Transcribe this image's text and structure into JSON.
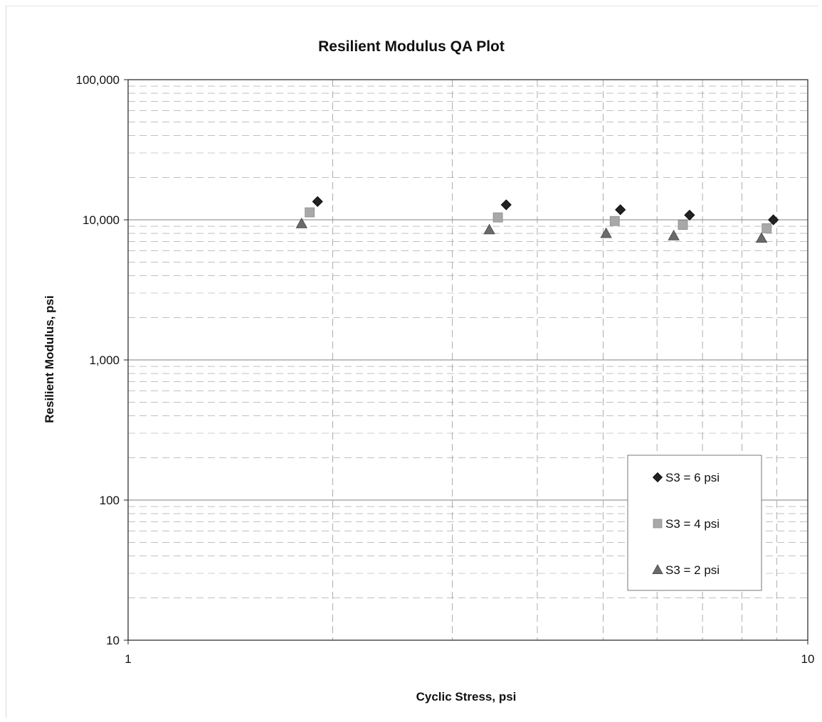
{
  "chart_data": {
    "type": "scatter",
    "title": "Resilient Modulus QA Plot",
    "xlabel": "Cyclic Stress,  psi",
    "ylabel": "Resilient Modulus,  psi",
    "x_scale": "log",
    "y_scale": "log",
    "xlim": [
      1,
      10
    ],
    "ylim": [
      10,
      100000
    ],
    "x_ticks": [
      "1",
      "10"
    ],
    "y_ticks": [
      "10",
      "100",
      "1,000",
      "10,000",
      "100,000"
    ],
    "grid": true,
    "legend_position": "right, lower-middle",
    "series": [
      {
        "name": "S3  = 6 psi",
        "marker": "diamond",
        "color": "#222222",
        "x": [
          1.9,
          3.6,
          5.3,
          6.7,
          8.9
        ],
        "y": [
          13500,
          12800,
          11800,
          10800,
          10000
        ]
      },
      {
        "name": "S3  = 4 psi",
        "marker": "square",
        "color": "#a8a8a8",
        "x": [
          1.85,
          3.5,
          5.2,
          6.55,
          8.7
        ],
        "y": [
          11300,
          10400,
          9800,
          9200,
          8700
        ]
      },
      {
        "name": "S3  = 2 psi",
        "marker": "triangle",
        "color": "#6a6a6a",
        "x": [
          1.8,
          3.4,
          5.05,
          6.35,
          8.55
        ],
        "y": [
          9400,
          8500,
          8000,
          7700,
          7400
        ]
      }
    ]
  }
}
